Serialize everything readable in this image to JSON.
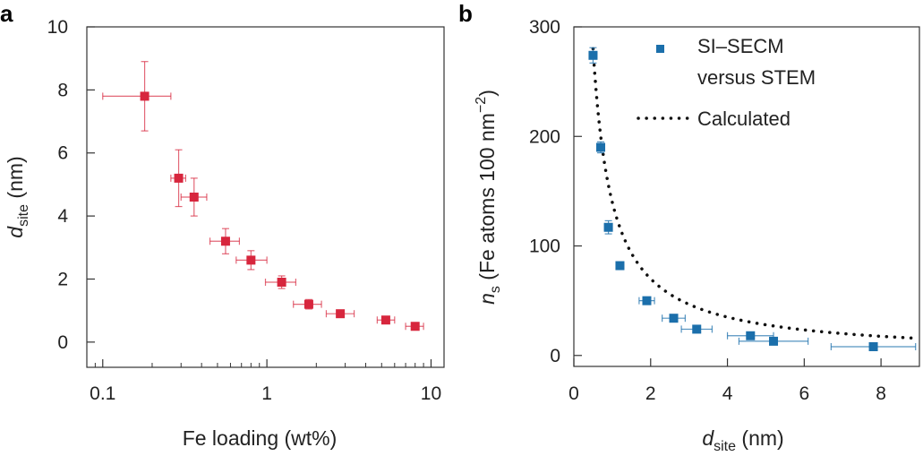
{
  "chart_data": [
    {
      "type": "scatter",
      "panel_label": "a",
      "xscale": "log",
      "xlim": [
        0.08,
        12
      ],
      "ylim": [
        -0.8,
        10
      ],
      "xticks": [
        0.1,
        1,
        10
      ],
      "xtick_labels": [
        "0.1",
        "1",
        "10"
      ],
      "yticks": [
        0,
        2,
        4,
        6,
        8,
        10
      ],
      "ytick_labels": [
        "0",
        "2",
        "4",
        "6",
        "8",
        "10"
      ],
      "xlabel": "Fe loading (wt%)",
      "ylabel_main": "d",
      "ylabel_sub": "site",
      "ylabel_rest": " (nm)",
      "color": "#d7263d",
      "points": [
        {
          "x": 0.18,
          "y": 7.8,
          "xerr": [
            0.1,
            0.26
          ],
          "yerr": [
            6.7,
            8.9
          ]
        },
        {
          "x": 0.29,
          "y": 5.2,
          "xerr": [
            0.26,
            0.32
          ],
          "yerr": [
            4.3,
            6.1
          ]
        },
        {
          "x": 0.36,
          "y": 4.6,
          "xerr": [
            0.3,
            0.43
          ],
          "yerr": [
            4.0,
            5.2
          ]
        },
        {
          "x": 0.56,
          "y": 3.2,
          "xerr": [
            0.45,
            0.68
          ],
          "yerr": [
            2.8,
            3.6
          ]
        },
        {
          "x": 0.8,
          "y": 2.6,
          "xerr": [
            0.65,
            1.0
          ],
          "yerr": [
            2.3,
            2.9
          ]
        },
        {
          "x": 1.23,
          "y": 1.9,
          "xerr": [
            0.98,
            1.5
          ],
          "yerr": [
            1.7,
            2.1
          ]
        },
        {
          "x": 1.8,
          "y": 1.2,
          "xerr": [
            1.45,
            2.15
          ],
          "yerr": [
            1.05,
            1.35
          ]
        },
        {
          "x": 2.8,
          "y": 0.9,
          "xerr": [
            2.3,
            3.4
          ],
          "yerr": [
            0.8,
            1.0
          ]
        },
        {
          "x": 5.3,
          "y": 0.7,
          "xerr": [
            4.7,
            6.0
          ],
          "yerr": [
            0.6,
            0.8
          ]
        },
        {
          "x": 8.0,
          "y": 0.5,
          "xerr": [
            7.0,
            9.0
          ],
          "yerr": [
            0.4,
            0.6
          ]
        }
      ]
    },
    {
      "type": "scatter",
      "panel_label": "b",
      "xlim": [
        0,
        9
      ],
      "ylim": [
        -10,
        300
      ],
      "xticks": [
        0,
        2,
        4,
        6,
        8
      ],
      "xtick_labels": [
        "0",
        "2",
        "4",
        "6",
        "8"
      ],
      "yticks": [
        0,
        100,
        200,
        300
      ],
      "ytick_labels": [
        "0",
        "100",
        "200",
        "300"
      ],
      "xlabel_main": "d",
      "xlabel_sub": "site",
      "xlabel_rest": " (nm)",
      "ylabel_main": "n",
      "ylabel_sub": "s",
      "ylabel_rest": " (Fe atoms 100 nm",
      "ylabel_sup": "−2",
      "ylabel_end": ")",
      "color": "#1b6fab",
      "series": [
        {
          "name": "SI–SECM versus STEM",
          "legend_line1": "SI–SECM",
          "legend_line2": "versus STEM",
          "points": [
            {
              "x": 0.5,
              "y": 274,
              "xerr": [
                0.4,
                0.6
              ],
              "yerr": [
                267,
                281
              ]
            },
            {
              "x": 0.7,
              "y": 190,
              "xerr": [
                0.62,
                0.78
              ],
              "yerr": [
                185,
                195
              ]
            },
            {
              "x": 0.9,
              "y": 117,
              "xerr": [
                0.8,
                1.0
              ],
              "yerr": [
                111,
                123
              ]
            },
            {
              "x": 1.2,
              "y": 82,
              "xerr": [
                1.1,
                1.3
              ],
              "yerr": [
                79,
                85
              ]
            },
            {
              "x": 1.9,
              "y": 50,
              "xerr": [
                1.7,
                2.1
              ],
              "yerr": [
                47,
                53
              ]
            },
            {
              "x": 2.6,
              "y": 34,
              "xerr": [
                2.3,
                2.9
              ],
              "yerr": [
                31,
                37
              ]
            },
            {
              "x": 3.2,
              "y": 24,
              "xerr": [
                2.8,
                3.6
              ],
              "yerr": [
                21,
                27
              ]
            },
            {
              "x": 4.6,
              "y": 18,
              "xerr": [
                4.0,
                5.2
              ],
              "yerr": [
                15,
                21
              ]
            },
            {
              "x": 5.2,
              "y": 13,
              "xerr": [
                4.3,
                6.1
              ],
              "yerr": [
                11,
                15
              ]
            },
            {
              "x": 7.8,
              "y": 8,
              "xerr": [
                6.7,
                8.9
              ],
              "yerr": [
                6.5,
                9.5
              ]
            }
          ]
        },
        {
          "name": "Calculated",
          "style": "dotted",
          "curve": "y = 140/x",
          "x_range": [
            0.5,
            8.8
          ]
        }
      ]
    }
  ]
}
